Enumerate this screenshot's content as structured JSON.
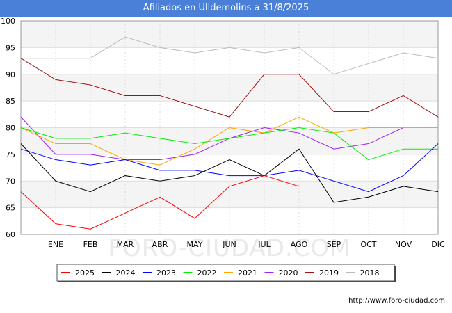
{
  "chart_data": {
    "type": "line",
    "title": "Afiliados en Ulldemolins a 31/8/2025",
    "xlabel": "",
    "ylabel": "",
    "categories": [
      "",
      "ENE",
      "FEB",
      "MAR",
      "ABR",
      "MAY",
      "JUN",
      "JUL",
      "AGO",
      "SEP",
      "OCT",
      "NOV",
      "DIC"
    ],
    "ylim": [
      60,
      100
    ],
    "yticks": [
      60,
      65,
      70,
      75,
      80,
      85,
      90,
      95,
      100
    ],
    "grid": true,
    "legend_position": "bottom",
    "series": [
      {
        "name": "2025",
        "color": "#ff0000",
        "values": [
          68,
          62,
          61,
          64,
          67,
          63,
          69,
          71,
          69,
          null,
          null,
          null,
          null
        ]
      },
      {
        "name": "2024",
        "color": "#000000",
        "values": [
          77,
          70,
          68,
          71,
          70,
          71,
          74,
          71,
          76,
          66,
          67,
          69,
          68
        ]
      },
      {
        "name": "2023",
        "color": "#0000ff",
        "values": [
          76,
          74,
          73,
          74,
          72,
          72,
          71,
          71,
          72,
          70,
          68,
          71,
          77
        ]
      },
      {
        "name": "2022",
        "color": "#00ee00",
        "values": [
          80,
          78,
          78,
          79,
          78,
          77,
          78,
          79,
          80,
          79,
          74,
          76,
          76
        ]
      },
      {
        "name": "2021",
        "color": "#ffa500",
        "values": [
          80,
          77,
          77,
          74,
          73,
          76,
          80,
          79,
          82,
          79,
          80,
          80,
          80
        ]
      },
      {
        "name": "2020",
        "color": "#a020f0",
        "values": [
          82,
          75,
          75,
          74,
          74,
          75,
          78,
          80,
          79,
          76,
          77,
          80,
          80
        ]
      },
      {
        "name": "2019",
        "color": "#a01010",
        "values": [
          93,
          89,
          88,
          86,
          86,
          84,
          82,
          90,
          90,
          83,
          83,
          86,
          82
        ]
      },
      {
        "name": "2018",
        "color": "#bbbbbb",
        "values": [
          93,
          93,
          93,
          97,
          95,
          94,
          95,
          94,
          95,
          90,
          92,
          94,
          93
        ]
      }
    ]
  },
  "watermark": "FORO-CIUDAD.COM",
  "source": "http://www.foro-ciudad.com"
}
